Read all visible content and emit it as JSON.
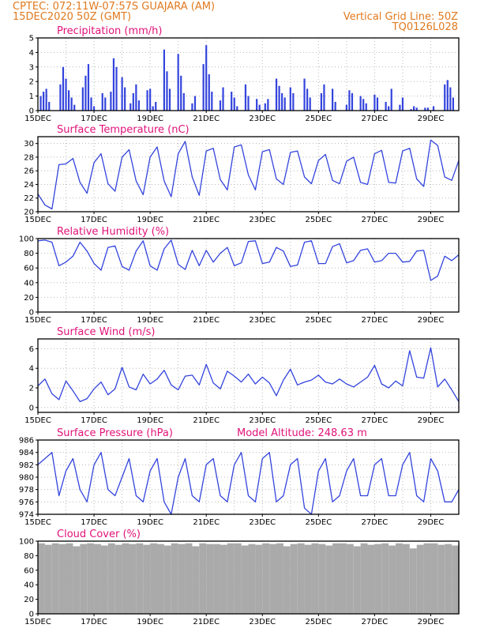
{
  "header": {
    "line1_left": "CPTEC:   072:11W-07:57S   GUAJARA (AM)",
    "line2_left": "15DEC2020 50Z (GMT)",
    "line2_right": "Vertical Grid Line: 50Z",
    "line3_right": "TQ0126L028"
  },
  "colors": {
    "series": "#3344dd",
    "cloud": "#aaaaaa",
    "title": "#e0127a",
    "header": "#e07a1f"
  },
  "chart_data": [
    {
      "type": "bar",
      "title": "Precipitation (mm/h)",
      "x_ticks": [
        "15DEC",
        "17DEC",
        "19DEC",
        "21DEC",
        "23DEC",
        "25DEC",
        "27DEC",
        "29DEC"
      ],
      "x_tick_days": [
        0,
        2,
        4,
        6,
        8,
        10,
        12,
        14
      ],
      "xlim_days": [
        0,
        15
      ],
      "ylim": [
        0,
        5
      ],
      "y_ticks": [
        0,
        1,
        2,
        3,
        4,
        5
      ],
      "grid": true,
      "x_days": [
        0.1,
        0.2,
        0.3,
        0.4,
        0.8,
        0.9,
        1.0,
        1.1,
        1.2,
        1.3,
        1.6,
        1.7,
        1.8,
        1.9,
        2.0,
        2.3,
        2.4,
        2.6,
        2.7,
        2.8,
        3.0,
        3.1,
        3.3,
        3.4,
        3.5,
        3.6,
        3.9,
        4.0,
        4.1,
        4.2,
        4.5,
        4.6,
        4.7,
        5.0,
        5.1,
        5.2,
        5.5,
        5.6,
        5.9,
        6.0,
        6.1,
        6.2,
        6.5,
        6.6,
        6.9,
        7.0,
        7.1,
        7.4,
        7.5,
        7.8,
        7.9,
        8.1,
        8.2,
        8.5,
        8.6,
        8.7,
        8.8,
        9.0,
        9.1,
        9.5,
        9.6,
        9.7,
        10.1,
        10.2,
        10.5,
        10.6,
        11.0,
        11.1,
        11.2,
        11.5,
        11.6,
        11.7,
        12.0,
        12.1,
        12.4,
        12.5,
        12.6,
        12.9,
        13.0,
        13.3,
        13.4,
        13.5,
        13.8,
        13.9,
        14.1,
        14.5,
        14.6,
        14.7,
        14.8
      ],
      "values": [
        1.0,
        1.3,
        1.5,
        0.6,
        1.8,
        3.0,
        2.2,
        1.4,
        0.9,
        0.4,
        1.6,
        2.4,
        3.2,
        0.9,
        0.3,
        1.2,
        0.9,
        1.3,
        3.6,
        3.0,
        2.3,
        1.6,
        0.5,
        1.2,
        1.8,
        0.7,
        1.4,
        1.5,
        0.3,
        0.6,
        4.2,
        2.7,
        1.5,
        3.9,
        2.4,
        1.2,
        0.5,
        1.0,
        3.2,
        4.5,
        2.5,
        1.3,
        0.7,
        1.6,
        1.3,
        0.9,
        0.3,
        1.8,
        1.0,
        0.8,
        0.4,
        0.5,
        0.8,
        2.2,
        1.7,
        1.2,
        0.9,
        1.6,
        1.2,
        2.2,
        1.5,
        0.9,
        1.2,
        1.8,
        1.5,
        0.6,
        0.4,
        1.4,
        1.2,
        1.0,
        0.8,
        0.5,
        1.1,
        0.9,
        0.6,
        0.3,
        1.5,
        0.4,
        0.9,
        0.1,
        0.3,
        0.2,
        0.2,
        0.2,
        0.3,
        1.8,
        2.1,
        1.6,
        0.9
      ]
    },
    {
      "type": "line",
      "title": "Surface Temperature (nC)",
      "x_ticks": [
        "15DEC",
        "17DEC",
        "19DEC",
        "21DEC",
        "23DEC",
        "25DEC",
        "27DEC",
        "29DEC"
      ],
      "x_tick_days": [
        0,
        2,
        4,
        6,
        8,
        10,
        12,
        14
      ],
      "xlim_days": [
        0,
        15
      ],
      "ylim": [
        20,
        31
      ],
      "y_ticks": [
        20,
        22,
        24,
        26,
        28,
        30
      ],
      "grid": true,
      "x_days": [
        0,
        0.25,
        0.5,
        0.75,
        1,
        1.25,
        1.5,
        1.75,
        2,
        2.25,
        2.5,
        2.75,
        3,
        3.25,
        3.5,
        3.75,
        4,
        4.25,
        4.5,
        4.75,
        5,
        5.25,
        5.5,
        5.75,
        6,
        6.25,
        6.5,
        6.75,
        7,
        7.25,
        7.5,
        7.75,
        8,
        8.25,
        8.5,
        8.75,
        9,
        9.25,
        9.5,
        9.75,
        10,
        10.25,
        10.5,
        10.75,
        11,
        11.25,
        11.5,
        11.75,
        12,
        12.25,
        12.5,
        12.75,
        13,
        13.25,
        13.5,
        13.75,
        14,
        14.25,
        14.5,
        14.75,
        15
      ],
      "values": [
        22.6,
        21.0,
        20.4,
        26.9,
        27.0,
        27.8,
        24.3,
        22.7,
        27.2,
        28.5,
        24.1,
        23.0,
        28.0,
        29.1,
        24.5,
        22.5,
        28.0,
        29.5,
        24.5,
        22.2,
        28.5,
        30.3,
        25.1,
        22.4,
        28.9,
        29.3,
        24.7,
        23.2,
        29.5,
        29.8,
        25.4,
        23.2,
        28.8,
        29.1,
        24.8,
        24.0,
        28.7,
        28.9,
        25.1,
        24.1,
        27.5,
        28.4,
        24.6,
        24.1,
        27.4,
        28.0,
        24.3,
        24.0,
        28.5,
        29.0,
        24.3,
        24.2,
        28.9,
        29.3,
        24.8,
        23.7,
        30.5,
        29.7,
        25.1,
        24.6,
        27.5
      ]
    },
    {
      "type": "line",
      "title": "Relative Humidity (%)",
      "x_ticks": [
        "15DEC",
        "17DEC",
        "19DEC",
        "21DEC",
        "23DEC",
        "25DEC",
        "27DEC",
        "29DEC"
      ],
      "x_tick_days": [
        0,
        2,
        4,
        6,
        8,
        10,
        12,
        14
      ],
      "xlim_days": [
        0,
        15
      ],
      "ylim": [
        0,
        100
      ],
      "y_ticks": [
        0,
        20,
        40,
        60,
        80,
        100
      ],
      "grid": true,
      "x_days": [
        0,
        0.25,
        0.5,
        0.75,
        1,
        1.25,
        1.5,
        1.75,
        2,
        2.25,
        2.5,
        2.75,
        3,
        3.25,
        3.5,
        3.75,
        4,
        4.25,
        4.5,
        4.75,
        5,
        5.25,
        5.5,
        5.75,
        6,
        6.25,
        6.5,
        6.75,
        7,
        7.25,
        7.5,
        7.75,
        8,
        8.25,
        8.5,
        8.75,
        9,
        9.25,
        9.5,
        9.75,
        10,
        10.25,
        10.5,
        10.75,
        11,
        11.25,
        11.5,
        11.75,
        12,
        12.25,
        12.5,
        12.75,
        13,
        13.25,
        13.5,
        13.75,
        14,
        14.25,
        14.5,
        14.75,
        15
      ],
      "values": [
        97,
        98,
        95,
        63,
        68,
        76,
        95,
        83,
        66,
        57,
        88,
        90,
        62,
        57,
        83,
        97,
        63,
        57,
        86,
        98,
        65,
        58,
        84,
        63,
        84,
        68,
        80,
        88,
        63,
        67,
        96,
        97,
        66,
        68,
        88,
        83,
        62,
        64,
        95,
        97,
        66,
        66,
        89,
        93,
        67,
        70,
        84,
        86,
        68,
        70,
        80,
        80,
        68,
        69,
        83,
        84,
        43,
        49,
        76,
        70,
        78
      ]
    },
    {
      "type": "line",
      "title": "Surface Wind (m/s)",
      "x_ticks": [
        "15DEC",
        "17DEC",
        "19DEC",
        "21DEC",
        "23DEC",
        "25DEC",
        "27DEC",
        "29DEC"
      ],
      "x_tick_days": [
        0,
        2,
        4,
        6,
        8,
        10,
        12,
        14
      ],
      "xlim_days": [
        0,
        15
      ],
      "ylim": [
        -0.5,
        7
      ],
      "y_ticks": [
        0,
        2,
        4,
        6
      ],
      "grid": true,
      "x_days": [
        0,
        0.25,
        0.5,
        0.75,
        1,
        1.25,
        1.5,
        1.75,
        2,
        2.25,
        2.5,
        2.75,
        3,
        3.25,
        3.5,
        3.75,
        4,
        4.25,
        4.5,
        4.75,
        5,
        5.25,
        5.5,
        5.75,
        6,
        6.25,
        6.5,
        6.75,
        7,
        7.25,
        7.5,
        7.75,
        8,
        8.25,
        8.5,
        8.75,
        9,
        9.25,
        9.5,
        9.75,
        10,
        10.25,
        10.5,
        10.75,
        11,
        11.25,
        11.5,
        11.75,
        12,
        12.25,
        12.5,
        12.75,
        13,
        13.25,
        13.5,
        13.75,
        14,
        14.25,
        14.5,
        14.75,
        15
      ],
      "values": [
        2.2,
        2.9,
        1.4,
        0.8,
        2.7,
        1.7,
        0.6,
        0.9,
        1.9,
        2.6,
        1.3,
        1.9,
        4.1,
        2.1,
        1.8,
        3.4,
        2.4,
        2.9,
        3.8,
        2.3,
        1.8,
        3.2,
        3.3,
        2.3,
        4.4,
        2.5,
        1.9,
        3.7,
        3.2,
        2.6,
        3.4,
        2.4,
        3.1,
        2.5,
        1.2,
        2.8,
        3.9,
        2.3,
        2.6,
        2.8,
        3.3,
        2.6,
        2.4,
        2.9,
        2.4,
        2.1,
        2.6,
        3.1,
        4.3,
        2.4,
        2.0,
        2.7,
        2.2,
        5.8,
        3.1,
        3.0,
        6.1,
        2.1,
        2.9,
        1.8,
        0.6
      ]
    },
    {
      "type": "line",
      "title": "Surface Pressure (hPa)",
      "annotation": "Model Altitude: 248.63 m",
      "x_ticks": [
        "15DEC",
        "17DEC",
        "19DEC",
        "21DEC",
        "23DEC",
        "25DEC",
        "27DEC",
        "29DEC"
      ],
      "x_tick_days": [
        0,
        2,
        4,
        6,
        8,
        10,
        12,
        14
      ],
      "xlim_days": [
        0,
        15
      ],
      "ylim": [
        974,
        986
      ],
      "y_ticks": [
        974,
        976,
        978,
        980,
        982,
        984,
        986
      ],
      "grid": true,
      "x_days": [
        0,
        0.25,
        0.5,
        0.75,
        1,
        1.25,
        1.5,
        1.75,
        2,
        2.25,
        2.5,
        2.75,
        3,
        3.25,
        3.5,
        3.75,
        4,
        4.25,
        4.5,
        4.75,
        5,
        5.25,
        5.5,
        5.75,
        6,
        6.25,
        6.5,
        6.75,
        7,
        7.25,
        7.5,
        7.75,
        8,
        8.25,
        8.5,
        8.75,
        9,
        9.25,
        9.5,
        9.75,
        10,
        10.25,
        10.5,
        10.75,
        11,
        11.25,
        11.5,
        11.75,
        12,
        12.25,
        12.5,
        12.75,
        13,
        13.25,
        13.5,
        13.75,
        14,
        14.25,
        14.5,
        14.75,
        15
      ],
      "values": [
        982,
        983,
        984,
        977,
        981,
        983,
        978,
        976,
        982,
        984,
        978,
        977,
        980,
        983,
        977,
        976,
        981,
        983,
        976,
        974,
        980,
        983,
        977,
        976,
        982,
        983,
        977,
        976,
        982,
        984,
        977,
        976,
        983,
        984,
        976,
        977,
        982,
        983,
        975,
        974,
        981,
        983,
        976,
        977,
        981,
        983,
        977,
        977,
        982,
        983,
        977,
        977,
        982,
        984,
        977,
        976,
        983,
        981,
        976,
        976,
        978
      ]
    },
    {
      "type": "bar",
      "title": "Cloud Cover (%)",
      "x_ticks": [
        "15DEC",
        "17DEC",
        "19DEC",
        "21DEC",
        "23DEC",
        "25DEC",
        "27DEC",
        "29DEC"
      ],
      "x_tick_days": [
        0,
        2,
        4,
        6,
        8,
        10,
        12,
        14
      ],
      "xlim_days": [
        0,
        15
      ],
      "ylim": [
        0,
        100
      ],
      "y_ticks": [
        0,
        20,
        40,
        60,
        80,
        100
      ],
      "grid": true,
      "x_days": [
        0,
        0.25,
        0.5,
        0.75,
        1,
        1.25,
        1.5,
        1.75,
        2,
        2.25,
        2.5,
        2.75,
        3,
        3.25,
        3.5,
        3.75,
        4,
        4.25,
        4.5,
        4.75,
        5,
        5.25,
        5.5,
        5.75,
        6,
        6.25,
        6.5,
        6.75,
        7,
        7.25,
        7.5,
        7.75,
        8,
        8.25,
        8.5,
        8.75,
        9,
        9.25,
        9.5,
        9.75,
        10,
        10.25,
        10.5,
        10.75,
        11,
        11.25,
        11.5,
        11.75,
        12,
        12.25,
        12.5,
        12.75,
        13,
        13.25,
        13.5,
        13.75,
        14,
        14.25,
        14.5,
        14.75,
        15
      ],
      "values": [
        97,
        95,
        97,
        96,
        97,
        93,
        96,
        97,
        96,
        94,
        97,
        95,
        97,
        96,
        97,
        95,
        97,
        96,
        94,
        97,
        96,
        97,
        93,
        97,
        96,
        96,
        95,
        97,
        97,
        94,
        96,
        95,
        97,
        96,
        97,
        93,
        96,
        97,
        95,
        97,
        96,
        94,
        97,
        97,
        96,
        93,
        97,
        95,
        96,
        97,
        94,
        97,
        96,
        90,
        95,
        97,
        97,
        95,
        96,
        94,
        97
      ]
    }
  ]
}
